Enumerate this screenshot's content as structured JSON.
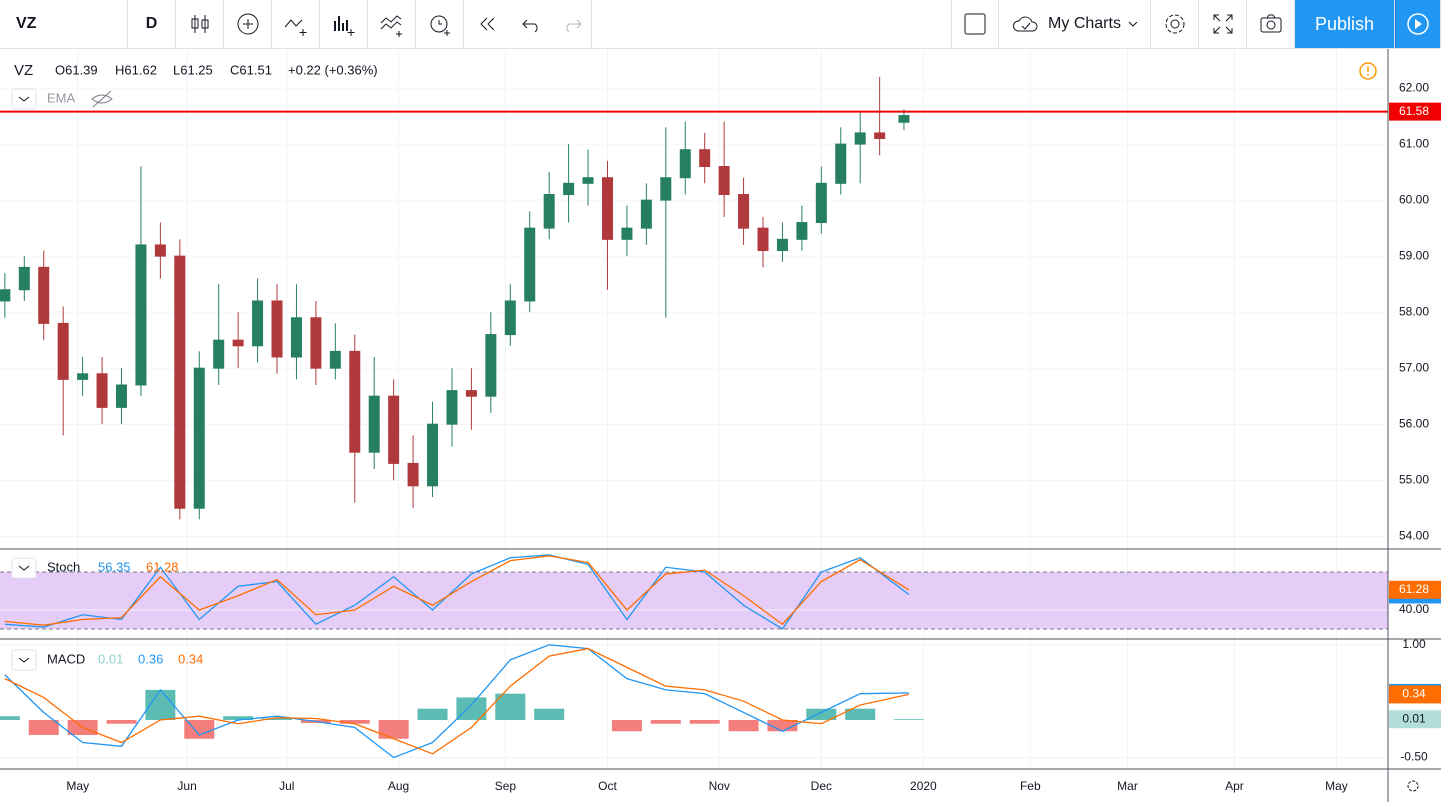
{
  "toolbar": {
    "symbol": "VZ",
    "interval": "D",
    "my_charts": "My Charts",
    "publish": "Publish"
  },
  "legend": {
    "symbol": "VZ",
    "open": "O61.39",
    "high": "H61.62",
    "low": "L61.25",
    "close": "C61.51",
    "change": "+0.22 (+0.36%)",
    "ema": "EMA"
  },
  "chart_data": [
    {
      "type": "candlestick",
      "x": [
        1,
        5,
        9,
        13,
        17,
        21,
        25,
        29,
        33,
        37,
        41,
        45,
        49,
        53,
        57,
        61,
        65,
        69,
        73,
        77,
        81,
        85,
        89,
        93,
        97,
        101,
        105,
        109,
        113,
        117,
        121,
        125,
        129,
        133,
        137,
        141,
        145,
        149,
        153,
        157,
        161,
        165,
        169,
        173,
        177,
        181,
        186
      ],
      "open": [
        58.2,
        58.4,
        58.8,
        57.8,
        56.8,
        56.9,
        56.3,
        56.7,
        59.2,
        59.0,
        54.5,
        57.0,
        57.5,
        57.4,
        58.2,
        57.2,
        57.9,
        57.0,
        57.3,
        55.5,
        56.5,
        55.3,
        54.9,
        56.0,
        56.6,
        56.5,
        57.6,
        58.2,
        59.5,
        60.1,
        60.3,
        60.4,
        59.3,
        59.5,
        60.0,
        60.4,
        60.9,
        60.6,
        60.1,
        59.5,
        59.1,
        59.3,
        59.6,
        60.3,
        61.0,
        61.2,
        61.39
      ],
      "high": [
        58.7,
        59.0,
        59.1,
        58.1,
        57.2,
        57.2,
        57.0,
        60.6,
        59.6,
        59.3,
        57.3,
        58.5,
        58.0,
        58.6,
        58.5,
        58.5,
        58.2,
        57.8,
        57.6,
        57.2,
        56.8,
        55.8,
        56.4,
        57.0,
        57.0,
        58.0,
        58.5,
        59.8,
        60.5,
        61.0,
        60.9,
        60.7,
        59.9,
        60.3,
        61.3,
        61.4,
        61.2,
        61.4,
        60.4,
        59.7,
        59.6,
        59.9,
        60.6,
        61.3,
        61.6,
        62.2,
        61.62
      ],
      "low": [
        57.9,
        58.2,
        57.5,
        55.8,
        56.5,
        56.0,
        56.0,
        56.5,
        58.6,
        54.3,
        54.3,
        56.7,
        57.0,
        57.1,
        56.9,
        56.8,
        56.7,
        56.8,
        54.6,
        55.2,
        55.0,
        54.5,
        54.7,
        55.6,
        55.9,
        56.2,
        57.4,
        58.0,
        59.3,
        59.6,
        59.9,
        58.4,
        59.0,
        59.2,
        57.9,
        60.1,
        60.3,
        59.7,
        59.2,
        58.8,
        58.9,
        59.1,
        59.4,
        60.1,
        60.3,
        60.8,
        61.25
      ],
      "close": [
        58.4,
        58.8,
        57.8,
        56.8,
        56.9,
        56.3,
        56.7,
        59.2,
        59.0,
        54.5,
        57.0,
        57.5,
        57.4,
        58.2,
        57.2,
        57.9,
        57.0,
        57.3,
        55.5,
        56.5,
        55.3,
        54.9,
        56.0,
        56.6,
        56.5,
        57.6,
        58.2,
        59.5,
        60.1,
        60.3,
        60.4,
        59.3,
        59.5,
        60.0,
        60.4,
        60.9,
        60.6,
        60.1,
        59.5,
        59.1,
        59.3,
        59.6,
        60.3,
        61.0,
        61.2,
        61.1,
        61.51
      ],
      "up_color": "#26805f",
      "down_color": "#b0393b",
      "xlim": [
        0,
        285.6
      ],
      "xticks": [
        {
          "value": 16,
          "label": "May"
        },
        {
          "value": 38.5,
          "label": "Jun"
        },
        {
          "value": 59,
          "label": "Jul"
        },
        {
          "value": 82,
          "label": "Aug"
        },
        {
          "value": 104,
          "label": "Sep"
        },
        {
          "value": 125,
          "label": "Oct"
        },
        {
          "value": 148,
          "label": "Nov"
        },
        {
          "value": 169,
          "label": "Dec"
        },
        {
          "value": 190,
          "label": "2020"
        },
        {
          "value": 212,
          "label": "Feb"
        },
        {
          "value": 232,
          "label": "Mar"
        },
        {
          "value": 254,
          "label": "Apr"
        },
        {
          "value": 275,
          "label": "May"
        }
      ],
      "ylim": [
        53.79,
        62.68
      ],
      "yticks": [
        {
          "value": 54,
          "label": "54.00"
        },
        {
          "value": 55,
          "label": "55.00"
        },
        {
          "value": 56,
          "label": "56.00"
        },
        {
          "value": 57,
          "label": "57.00"
        },
        {
          "value": 58,
          "label": "58.00"
        },
        {
          "value": 59,
          "label": "59.00"
        },
        {
          "value": 60,
          "label": "60.00"
        },
        {
          "value": 61,
          "label": "61.00"
        },
        {
          "value": 62,
          "label": "62.00"
        }
      ],
      "price_line": 61.58,
      "price_line_color": "#f00000",
      "grid": true
    },
    {
      "type": "stochastic",
      "title": "Stoch",
      "x": [
        1,
        9,
        17,
        25,
        33,
        41,
        49,
        57,
        65,
        73,
        81,
        89,
        97,
        105,
        113,
        121,
        129,
        137,
        145,
        153,
        161,
        169,
        177,
        187
      ],
      "series": [
        {
          "color": "#2196f3",
          "values": [
            25,
            22,
            35,
            30,
            85,
            30,
            65,
            70,
            25,
            45,
            75,
            40,
            78,
            95,
            98,
            88,
            30,
            85,
            80,
            45,
            20,
            80,
            95,
            56.35
          ]
        },
        {
          "color": "#ff6d00",
          "values": [
            28,
            24,
            30,
            32,
            75,
            40,
            55,
            72,
            35,
            40,
            65,
            45,
            70,
            92,
            97,
            90,
            40,
            78,
            82,
            55,
            25,
            70,
            93,
            61.28
          ]
        }
      ],
      "band": [
        20,
        80
      ],
      "band_color": "#e6cdf7",
      "ylim": [
        10.5,
        103.2
      ],
      "yticks": [
        {
          "value": 40,
          "label": "40.00"
        }
      ]
    },
    {
      "type": "macd",
      "title": "MACD",
      "x": [
        1,
        9,
        17,
        25,
        33,
        41,
        49,
        57,
        65,
        73,
        81,
        89,
        97,
        105,
        113,
        121,
        129,
        137,
        145,
        153,
        161,
        169,
        177,
        187
      ],
      "histogram": {
        "color": "#26a69a",
        "negative_color": "#ef5350",
        "values": [
          0.05,
          -0.2,
          -0.2,
          -0.05,
          0.4,
          -0.25,
          0.05,
          0.02,
          -0.04,
          -0.05,
          -0.25,
          0.15,
          0.3,
          0.35,
          0.15,
          0.0,
          -0.15,
          -0.05,
          -0.05,
          -0.15,
          -0.15,
          0.15,
          0.15,
          0.01
        ]
      },
      "series": [
        {
          "color": "#2196f3",
          "values": [
            0.6,
            0.1,
            -0.3,
            -0.35,
            0.4,
            -0.2,
            0.0,
            0.05,
            -0.02,
            -0.1,
            -0.5,
            -0.3,
            0.2,
            0.8,
            1.0,
            0.95,
            0.55,
            0.4,
            0.35,
            0.1,
            -0.15,
            0.1,
            0.35,
            0.36
          ]
        },
        {
          "color": "#ff6d00",
          "values": [
            0.55,
            0.3,
            -0.1,
            -0.3,
            0.0,
            0.05,
            -0.05,
            0.03,
            0.02,
            -0.05,
            -0.25,
            -0.45,
            -0.1,
            0.45,
            0.85,
            0.95,
            0.7,
            0.45,
            0.4,
            0.25,
            0.0,
            -0.05,
            0.2,
            0.34
          ]
        }
      ],
      "ylim": [
        -0.639,
        1.064
      ],
      "yticks": [
        {
          "value": 1,
          "label": "1.00"
        },
        {
          "value": -0.5,
          "label": "-0.50"
        }
      ]
    }
  ]
}
